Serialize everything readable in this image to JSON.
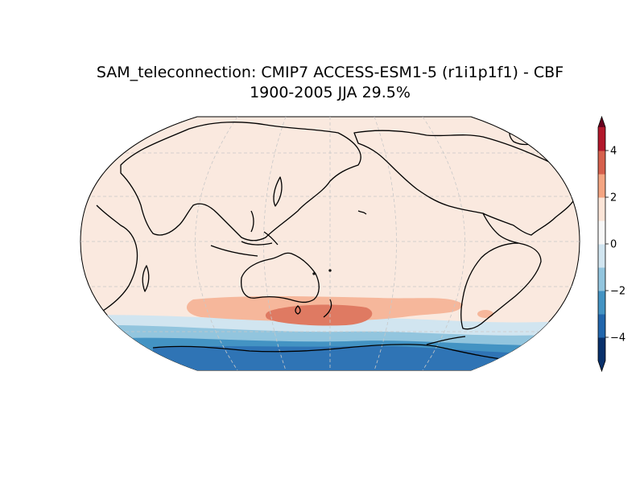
{
  "title": {
    "line1": "SAM_teleconnection: CMIP7 ACCESS-ESM1-5 (r1i1p1f1) - CBF",
    "line2": "1900-2005 JJA 29.5%"
  },
  "map": {
    "projection": "Robinson",
    "central_longitude": 180,
    "gridlines": true,
    "coastlines": true
  },
  "colorbar": {
    "orientation": "vertical",
    "extend": "both",
    "levels": [
      -5,
      -4,
      -3,
      -2,
      -1,
      0,
      1,
      2,
      3,
      4,
      5
    ],
    "colors": [
      "#08306b",
      "#2166ac",
      "#4393c3",
      "#92c5de",
      "#d1e5f0",
      "#f7f7f7",
      "#fbe5d8",
      "#f4a582",
      "#d6604d",
      "#b2182b",
      "#67001f"
    ],
    "tick_labels": [
      "−4",
      "−2",
      "0",
      "2",
      "4"
    ],
    "tick_values": [
      -4,
      -2,
      0,
      2,
      4
    ]
  }
}
